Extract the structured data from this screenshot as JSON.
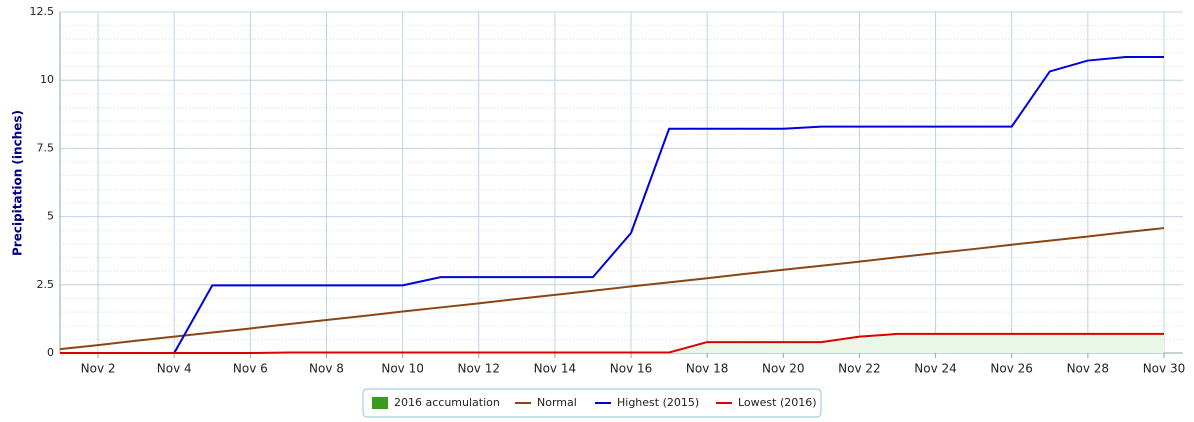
{
  "chart_data": {
    "type": "line",
    "ylabel": "Precipitation (inches)",
    "x": [
      1,
      2,
      3,
      4,
      5,
      6,
      7,
      8,
      9,
      10,
      11,
      12,
      13,
      14,
      15,
      16,
      17,
      18,
      19,
      20,
      21,
      22,
      23,
      24,
      25,
      26,
      27,
      28,
      29,
      30
    ],
    "xlim": [
      1,
      30.5
    ],
    "xticks": [
      {
        "value": 2,
        "label": "Nov 2"
      },
      {
        "value": 4,
        "label": "Nov 4"
      },
      {
        "value": 6,
        "label": "Nov 6"
      },
      {
        "value": 8,
        "label": "Nov 8"
      },
      {
        "value": 10,
        "label": "Nov 10"
      },
      {
        "value": 12,
        "label": "Nov 12"
      },
      {
        "value": 14,
        "label": "Nov 14"
      },
      {
        "value": 16,
        "label": "Nov 16"
      },
      {
        "value": 18,
        "label": "Nov 18"
      },
      {
        "value": 20,
        "label": "Nov 20"
      },
      {
        "value": 22,
        "label": "Nov 22"
      },
      {
        "value": 24,
        "label": "Nov 24"
      },
      {
        "value": 26,
        "label": "Nov 26"
      },
      {
        "value": 28,
        "label": "Nov 28"
      },
      {
        "value": 30,
        "label": "Nov 30"
      }
    ],
    "ylim": [
      0,
      12.5
    ],
    "yticks": [
      0,
      2.5,
      5,
      7.5,
      10,
      12.5
    ],
    "grid": true,
    "series": [
      {
        "name": "2016 accumulation",
        "kind": "area",
        "color": "#3a9a1e",
        "fill": "#eaf6e6",
        "values": [
          0,
          0,
          0,
          0,
          0,
          0,
          0.02,
          0.02,
          0.02,
          0.02,
          0.02,
          0.02,
          0.02,
          0.02,
          0.02,
          0.02,
          0.02,
          0.4,
          0.4,
          0.4,
          0.4,
          0.6,
          0.7,
          0.7,
          0.7,
          0.7,
          0.7,
          0.7,
          0.7,
          0.7
        ]
      },
      {
        "name": "Normal",
        "kind": "line",
        "color": "#8b4513",
        "values": [
          0.14,
          0.29,
          0.45,
          0.6,
          0.75,
          0.9,
          1.06,
          1.21,
          1.36,
          1.52,
          1.67,
          1.82,
          1.98,
          2.13,
          2.28,
          2.44,
          2.59,
          2.74,
          2.9,
          3.05,
          3.2,
          3.35,
          3.51,
          3.66,
          3.81,
          3.97,
          4.12,
          4.27,
          4.43,
          4.58
        ]
      },
      {
        "name": "Highest (2015)",
        "kind": "line",
        "color": "#0000dd",
        "values": [
          0,
          0,
          0,
          0,
          2.48,
          2.48,
          2.48,
          2.48,
          2.48,
          2.48,
          2.78,
          2.78,
          2.78,
          2.78,
          2.78,
          4.4,
          8.22,
          8.22,
          8.22,
          8.22,
          8.3,
          8.3,
          8.3,
          8.3,
          8.3,
          8.3,
          10.32,
          10.72,
          10.85,
          10.85
        ]
      },
      {
        "name": "Lowest (2016)",
        "kind": "line",
        "color": "#dd0000",
        "values": [
          0,
          0,
          0,
          0,
          0,
          0,
          0.02,
          0.02,
          0.02,
          0.02,
          0.02,
          0.02,
          0.02,
          0.02,
          0.02,
          0.02,
          0.02,
          0.4,
          0.4,
          0.4,
          0.4,
          0.6,
          0.7,
          0.7,
          0.7,
          0.7,
          0.7,
          0.7,
          0.7,
          0.7
        ]
      }
    ]
  }
}
